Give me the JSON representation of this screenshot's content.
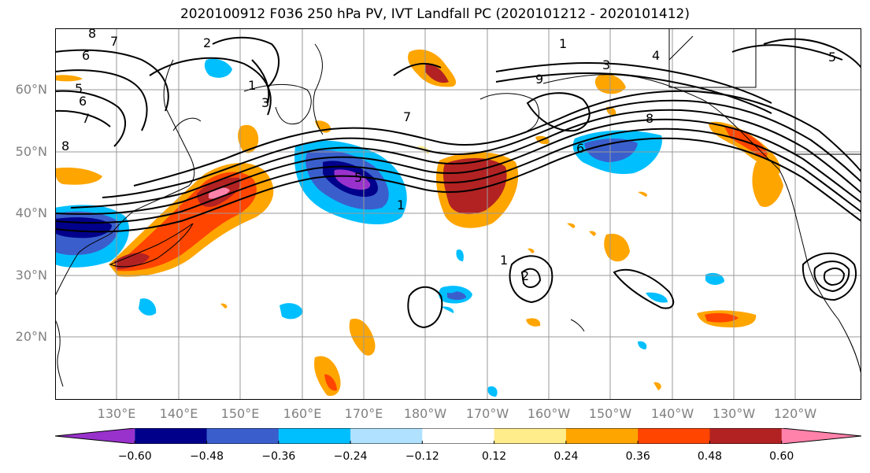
{
  "title": "2020100912 F036 250 hPa PV, IVT Landfall PC (2020101212 - 2020101412)",
  "lat_labels": [
    "60°N",
    "50°N",
    "40°N",
    "30°N",
    "20°N"
  ],
  "lon_labels": [
    "130°E",
    "140°E",
    "150°E",
    "160°E",
    "170°E",
    "180°W",
    "170°W",
    "160°W",
    "150°W",
    "140°W",
    "130°W",
    "120°W"
  ],
  "colorbar": {
    "ticks": [
      "−0.60",
      "−0.48",
      "−0.36",
      "−0.24",
      "−0.12",
      "0.12",
      "0.24",
      "0.36",
      "0.48",
      "0.60"
    ],
    "colors": [
      "#9932CC",
      "#00008B",
      "#3A5FCD",
      "#00BFFF",
      "#B0E2FF",
      "#FFFFFF",
      "#FFEC8B",
      "#FFA500",
      "#FF4500",
      "#B22222",
      "#FF82AB"
    ]
  },
  "contour_labels": [
    "8",
    "7",
    "6",
    "5",
    "2",
    "1",
    "3",
    "4",
    "5",
    "6",
    "7",
    "8",
    "1",
    "2",
    "1",
    "9",
    "6",
    "5",
    "7",
    "8",
    "1",
    "3"
  ],
  "colors": {
    "land": "#000000",
    "grid": "#999999"
  }
}
